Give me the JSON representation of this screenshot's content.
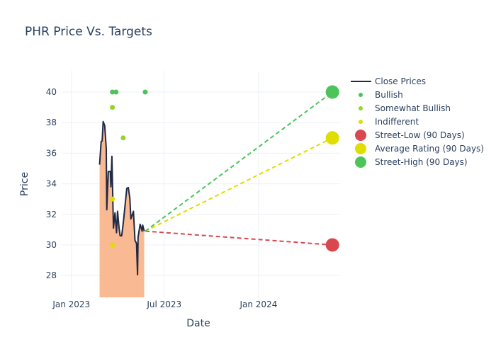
{
  "chart_data": {
    "type": "line",
    "title": "PHR Price Vs. Targets",
    "xlabel": "Date",
    "ylabel": "Price",
    "xlim": [
      "2022-12-13",
      "2024-06-08"
    ],
    "ylim": [
      26.57,
      41.39
    ],
    "grid": true,
    "legend_placement": "top-right",
    "x_ticks": [
      {
        "date": "2023-01-01",
        "label": "Jan 2023"
      },
      {
        "date": "2023-07-01",
        "label": "Jul 2023"
      },
      {
        "date": "2024-01-01",
        "label": "Jan 2024"
      }
    ],
    "y_ticks": [
      28,
      30,
      32,
      34,
      36,
      38,
      40
    ],
    "close_prices": {
      "name": "Close Prices",
      "color": "#1f2a44",
      "fill_color": "#f9b993",
      "dates": [
        "2023-02-25",
        "2023-02-28",
        "2023-03-02",
        "2023-03-04",
        "2023-03-07",
        "2023-03-10",
        "2023-03-11",
        "2023-03-14",
        "2023-03-18",
        "2023-03-19",
        "2023-03-21",
        "2023-03-24",
        "2023-03-27",
        "2023-03-30",
        "2023-04-01",
        "2023-04-04",
        "2023-04-06",
        "2023-04-09",
        "2023-04-11",
        "2023-04-13",
        "2023-04-19",
        "2023-04-22",
        "2023-04-25",
        "2023-04-27",
        "2023-05-02",
        "2023-05-05",
        "2023-05-08",
        "2023-05-10",
        "2023-05-11",
        "2023-05-15",
        "2023-05-19",
        "2023-05-20",
        "2023-05-23"
      ],
      "values": [
        35.25,
        36.76,
        36.8,
        38.07,
        37.8,
        36.3,
        32.3,
        34.8,
        34.8,
        33.8,
        35.8,
        31.1,
        32.1,
        30.8,
        32.2,
        31.1,
        30.6,
        30.6,
        31.1,
        31.7,
        33.7,
        33.75,
        33.05,
        31.7,
        32.2,
        30.3,
        30.1,
        28.05,
        30.5,
        31.35,
        30.9,
        31.3,
        30.9
      ]
    },
    "ratings": [
      {
        "name": "Bullish",
        "color": "#4cc45a",
        "points": [
          {
            "date": "2023-03-22",
            "value": 40
          },
          {
            "date": "2023-03-29",
            "value": 40
          },
          {
            "date": "2023-05-25",
            "value": 40
          }
        ]
      },
      {
        "name": "Somewhat Bullish",
        "color": "#94d42a",
        "points": [
          {
            "date": "2023-03-22",
            "value": 39
          },
          {
            "date": "2023-04-12",
            "value": 37
          }
        ]
      },
      {
        "name": "Indifferent",
        "color": "#e0de00",
        "points": [
          {
            "date": "2023-03-22",
            "value": 33
          },
          {
            "date": "2023-03-22",
            "value": 30
          }
        ]
      }
    ],
    "targets": [
      {
        "name": "Street-Low (90 Days)",
        "color": "#d9484f",
        "start": {
          "date": "2023-05-25",
          "value": 30.9
        },
        "end": {
          "date": "2024-05-24",
          "value": 30
        }
      },
      {
        "name": "Average Rating (90 Days)",
        "color": "#e0de00",
        "start": {
          "date": "2023-05-25",
          "value": 30.9
        },
        "end": {
          "date": "2024-05-24",
          "value": 37
        }
      },
      {
        "name": "Street-High (90 Days)",
        "color": "#4cc45a",
        "start": {
          "date": "2023-05-25",
          "value": 30.9
        },
        "end": {
          "date": "2024-05-24",
          "value": 40
        }
      }
    ]
  }
}
